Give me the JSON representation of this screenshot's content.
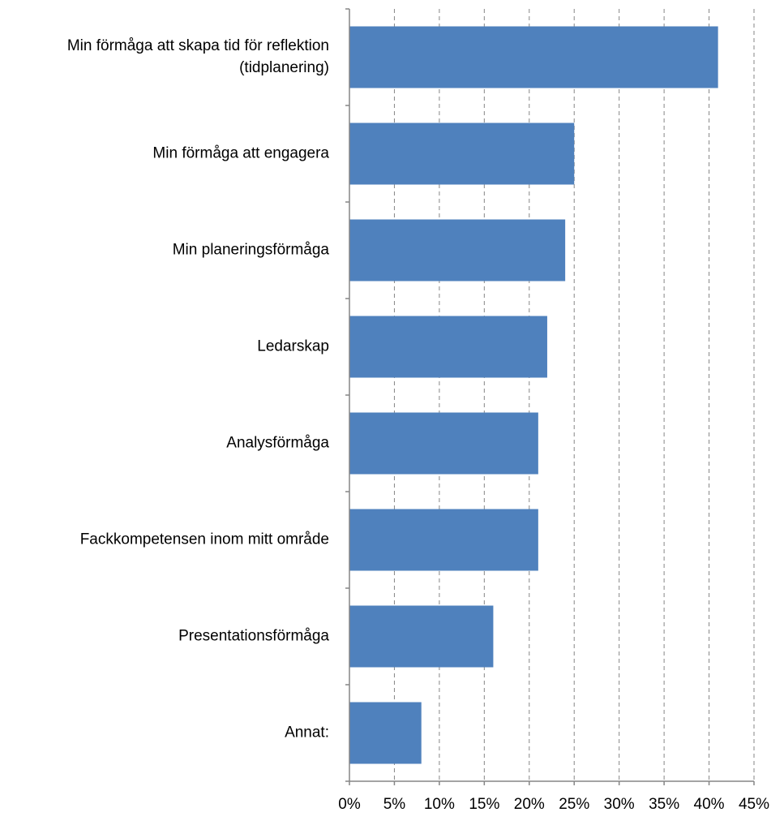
{
  "chart_data": {
    "type": "bar",
    "orientation": "horizontal",
    "categories": [
      [
        "Min förmåga att skapa tid för reflektion",
        "(tidplanering)"
      ],
      [
        "Min förmåga att engagera"
      ],
      [
        "Min planeringsförmåga"
      ],
      [
        "Ledarskap"
      ],
      [
        "Analysförmåga"
      ],
      [
        "Fackkompetensen inom mitt område"
      ],
      [
        "Presentationsförmåga"
      ],
      [
        "Annat:"
      ]
    ],
    "values": [
      41,
      25,
      24,
      22,
      21,
      21,
      16,
      8
    ],
    "xlim": [
      0,
      45
    ],
    "xticks": [
      0,
      5,
      10,
      15,
      20,
      25,
      30,
      35,
      40,
      45
    ],
    "tick_suffix": "%",
    "grid": "vertical dashed",
    "bar_color": "#4F81BD",
    "grid_color": "#868686",
    "axis_color": "#868686"
  }
}
